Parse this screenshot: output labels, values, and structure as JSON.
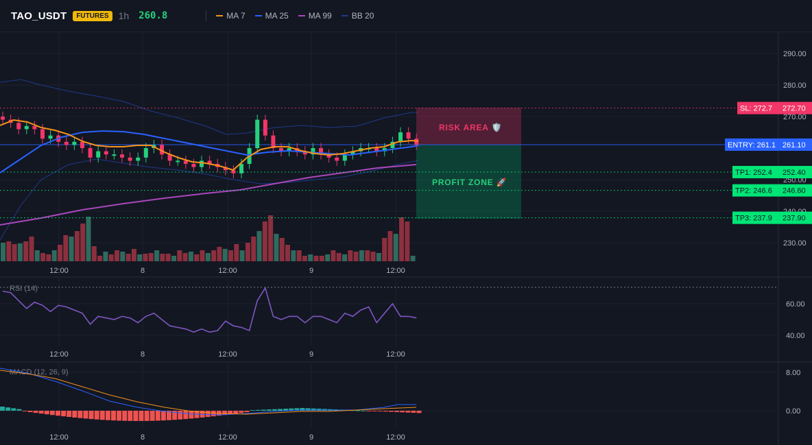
{
  "header": {
    "symbol": "TAO_USDT",
    "badge": "FUTURES",
    "interval": "1h",
    "price": "260.8"
  },
  "indicators": [
    {
      "label": "MA 7",
      "color": "#f7931a"
    },
    {
      "label": "MA 25",
      "color": "#2962ff"
    },
    {
      "label": "MA 99",
      "color": "#ab47bc"
    },
    {
      "label": "BB 20",
      "color": "#1e3a8a"
    }
  ],
  "price_axis": [
    "290.00",
    "280.00",
    "270.00",
    "250.00",
    "240.00",
    "230.00"
  ],
  "time_axis": [
    "12:00",
    "8",
    "12:00",
    "9",
    "12:00"
  ],
  "levels": {
    "sl": {
      "tag": "SL: 272.7",
      "value": "272.70",
      "price": 272.7,
      "color": "#f23667"
    },
    "entry": {
      "tag": "ENTRY: 261.1",
      "value": "261.10",
      "price": 261.1,
      "color": "#2962ff"
    },
    "tp1": {
      "tag": "TP1: 252.4",
      "value": "252.40",
      "price": 252.4,
      "color": "#00e676"
    },
    "tp2": {
      "tag": "TP2: 246.6",
      "value": "246.60",
      "price": 246.6,
      "color": "#00e676"
    },
    "tp3": {
      "tag": "TP3: 237.9",
      "value": "237.90",
      "price": 237.9,
      "color": "#00e676"
    }
  },
  "zones": {
    "risk_label": "RISK AREA 🛡️",
    "profit_label": "PROFIT ZONE 🚀"
  },
  "rsi": {
    "label": "RSI (14)",
    "axis": [
      "60.00",
      "40.00"
    ],
    "values": [
      68,
      67,
      62,
      57,
      61,
      59,
      55,
      59,
      58,
      56,
      54,
      47,
      52,
      51,
      50,
      52,
      51,
      48,
      52,
      54,
      50,
      46,
      45,
      44,
      42,
      44,
      42,
      43,
      49,
      46,
      45,
      43,
      62,
      70,
      52,
      50,
      52,
      52,
      48,
      52,
      52,
      50,
      48,
      54,
      52,
      56,
      58,
      48,
      54,
      60,
      52,
      52,
      51
    ]
  },
  "macd": {
    "label": "MACD (12, 26, 9)",
    "axis": [
      "8.00",
      "0.00"
    ]
  },
  "candles": {
    "colors": {
      "up": "#26d07c",
      "down": "#f23667"
    }
  }
}
